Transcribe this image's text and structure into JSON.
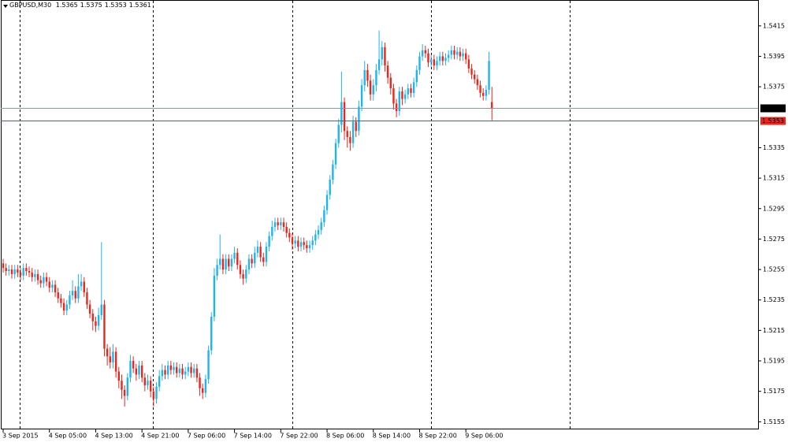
{
  "chart_data": {
    "type": "candlestick",
    "symbol": "GBPUSD,M30",
    "up_color": "#1eb4ee",
    "down_color": "#e8261c",
    "categories": [
      "3 Sep 2015",
      null,
      null,
      null,
      null,
      null,
      null,
      null,
      null,
      null,
      null,
      null,
      null,
      null,
      null,
      null,
      "4 Sep 05:00",
      null,
      null,
      null,
      null,
      null,
      null,
      null,
      null,
      null,
      null,
      null,
      null,
      null,
      null,
      null,
      "4 Sep 13:00",
      null,
      null,
      null,
      null,
      null,
      null,
      null,
      null,
      null,
      null,
      null,
      null,
      null,
      null,
      null,
      "4 Sep 21:00",
      null,
      null,
      null,
      null,
      null,
      null,
      null,
      null,
      null,
      null,
      null,
      null,
      null,
      null,
      null,
      "7 Sep 06:00",
      null,
      null,
      null,
      null,
      null,
      null,
      null,
      null,
      null,
      null,
      null,
      null,
      null,
      null,
      null,
      "7 Sep 14:00",
      null,
      null,
      null,
      null,
      null,
      null,
      null,
      null,
      null,
      null,
      null,
      null,
      null,
      null,
      null,
      "7 Sep 22:00",
      null,
      null,
      null,
      null,
      null,
      null,
      null,
      null,
      null,
      null,
      null,
      null,
      null,
      null,
      null,
      "8 Sep 06:00",
      null,
      null,
      null,
      null,
      null,
      null,
      null,
      null,
      null,
      null,
      null,
      null,
      null,
      null,
      null,
      "8 Sep 14:00",
      null,
      null,
      null,
      null,
      null,
      null,
      null,
      null,
      null,
      null,
      null,
      null,
      null,
      null,
      null,
      "8 Sep 22:00",
      null,
      null,
      null,
      null,
      null,
      null,
      null,
      null,
      null,
      null,
      null,
      null,
      null,
      null,
      null,
      "9 Sep 06:00",
      null,
      null,
      null,
      null,
      null,
      null,
      null,
      null,
      null
    ],
    "open": [
      1.5259,
      1.5256,
      1.5254,
      1.5255,
      1.5252,
      1.5255,
      1.5253,
      1.5251,
      1.5256,
      1.5254,
      1.5253,
      1.525,
      1.5252,
      1.5248,
      1.5246,
      1.525,
      1.5247,
      1.5243,
      1.5245,
      1.524,
      1.5236,
      1.5233,
      1.5228,
      1.5232,
      1.5238,
      1.5241,
      1.5236,
      1.5244,
      1.5247,
      1.524,
      1.5232,
      1.5226,
      1.5221,
      1.5218,
      1.5225,
      1.5232,
      1.5203,
      1.5198,
      1.5194,
      1.5201,
      1.5188,
      1.5182,
      1.5176,
      1.5172,
      1.5184,
      1.5195,
      1.519,
      1.5186,
      1.5192,
      1.5184,
      1.5179,
      1.5182,
      1.5175,
      1.517,
      1.5178,
      1.5185,
      1.5189,
      1.5186,
      1.5192,
      1.5189,
      1.5191,
      1.5187,
      1.519,
      1.5186,
      1.5188,
      1.5191,
      1.5187,
      1.519,
      1.5184,
      1.5177,
      1.5174,
      1.5183,
      1.5202,
      1.5224,
      1.5251,
      1.5258,
      1.5262,
      1.5255,
      1.5262,
      1.5257,
      1.5262,
      1.5266,
      1.5258,
      1.5252,
      1.5249,
      1.5255,
      1.5262,
      1.5259,
      1.5266,
      1.527,
      1.5263,
      1.526,
      1.527,
      1.5277,
      1.5283,
      1.5286,
      1.5284,
      1.5286,
      1.5283,
      1.5279,
      1.5276,
      1.5272,
      1.5274,
      1.527,
      1.5273,
      1.5271,
      1.5269,
      1.5271,
      1.5274,
      1.5278,
      1.5281,
      1.5286,
      1.5294,
      1.5304,
      1.5314,
      1.5324,
      1.5338,
      1.535,
      1.5365,
      1.5346,
      1.5342,
      1.5338,
      1.5352,
      1.5346,
      1.5362,
      1.5376,
      1.5386,
      1.5379,
      1.537,
      1.5376,
      1.5386,
      1.5393,
      1.5401,
      1.5389,
      1.5381,
      1.5374,
      1.5364,
      1.5359,
      1.5372,
      1.5367,
      1.537,
      1.5374,
      1.5371,
      1.5378,
      1.5386,
      1.5395,
      1.5399,
      1.5397,
      1.5391,
      1.5393,
      1.5389,
      1.5392,
      1.5395,
      1.5392,
      1.5394,
      1.5396,
      1.5399,
      1.5396,
      1.5398,
      1.5395,
      1.5397,
      1.5393,
      1.5387,
      1.5383,
      1.538,
      1.5376,
      1.5371,
      1.5369,
      1.5373,
      1.5365
    ],
    "high": [
      1.5262,
      1.5259,
      1.5258,
      1.5258,
      1.5258,
      1.5258,
      1.5256,
      1.5259,
      1.5259,
      1.5257,
      1.5256,
      1.5255,
      1.5255,
      1.5251,
      1.5253,
      1.5253,
      1.525,
      1.5248,
      1.5248,
      1.5243,
      1.5239,
      1.5236,
      1.5235,
      1.5241,
      1.5248,
      1.5244,
      1.5252,
      1.5252,
      1.525,
      1.5243,
      1.5235,
      1.5229,
      1.5224,
      1.523,
      1.5273,
      1.5235,
      1.5206,
      1.5204,
      1.5206,
      1.5204,
      1.5191,
      1.5186,
      1.5179,
      1.5187,
      1.5199,
      1.5198,
      1.5193,
      1.5195,
      1.5195,
      1.5187,
      1.5186,
      1.5185,
      1.5178,
      1.5181,
      1.5189,
      1.5193,
      1.5192,
      1.5195,
      1.5195,
      1.5194,
      1.5194,
      1.5193,
      1.5193,
      1.5191,
      1.5194,
      1.5194,
      1.5193,
      1.5193,
      1.5187,
      1.518,
      1.5186,
      1.5205,
      1.5227,
      1.5256,
      1.5262,
      1.5278,
      1.5265,
      1.5265,
      1.5265,
      1.5265,
      1.527,
      1.5269,
      1.5261,
      1.5255,
      1.5258,
      1.5265,
      1.5265,
      1.527,
      1.5274,
      1.5273,
      1.5266,
      1.5273,
      1.528,
      1.5287,
      1.5289,
      1.5289,
      1.5289,
      1.5289,
      1.5286,
      1.5282,
      1.5279,
      1.5277,
      1.5277,
      1.5276,
      1.5276,
      1.5274,
      1.5274,
      1.5277,
      1.5281,
      1.5284,
      1.5289,
      1.5297,
      1.5307,
      1.5317,
      1.5327,
      1.5341,
      1.5354,
      1.5385,
      1.5368,
      1.5349,
      1.5346,
      1.5356,
      1.5355,
      1.5366,
      1.538,
      1.5392,
      1.539,
      1.5383,
      1.538,
      1.539,
      1.5412,
      1.5405,
      1.5404,
      1.5392,
      1.5384,
      1.5377,
      1.5367,
      1.5375,
      1.5375,
      1.5373,
      1.5377,
      1.5377,
      1.5381,
      1.5389,
      1.5398,
      1.5403,
      1.5402,
      1.54,
      1.5396,
      1.5396,
      1.5395,
      1.5398,
      1.5398,
      1.5397,
      1.5399,
      1.5402,
      1.5402,
      1.5401,
      1.5401,
      1.54,
      1.54,
      1.5396,
      1.539,
      1.5386,
      1.5383,
      1.5379,
      1.5374,
      1.5376,
      1.5398,
      1.5375
    ],
    "low": [
      1.5253,
      1.5251,
      1.5251,
      1.5249,
      1.5249,
      1.525,
      1.5248,
      1.5248,
      1.5251,
      1.525,
      1.5247,
      1.5247,
      1.5245,
      1.5243,
      1.5243,
      1.5244,
      1.524,
      1.524,
      1.5237,
      1.5233,
      1.523,
      1.5225,
      1.5225,
      1.5229,
      1.5235,
      1.5233,
      1.5233,
      1.5241,
      1.5237,
      1.5229,
      1.5223,
      1.5215,
      1.5214,
      1.5215,
      1.5222,
      1.5198,
      1.5192,
      1.519,
      1.519,
      1.5184,
      1.5177,
      1.517,
      1.5165,
      1.5169,
      1.5181,
      1.5187,
      1.5182,
      1.5183,
      1.5181,
      1.5175,
      1.5176,
      1.5171,
      1.5165,
      1.5167,
      1.5175,
      1.5182,
      1.5183,
      1.5183,
      1.5186,
      1.5186,
      1.5184,
      1.5184,
      1.5183,
      1.5183,
      1.5185,
      1.5184,
      1.5184,
      1.5181,
      1.5172,
      1.517,
      1.5171,
      1.518,
      1.5199,
      1.5221,
      1.5248,
      1.5255,
      1.5252,
      1.5252,
      1.5254,
      1.5254,
      1.5259,
      1.5255,
      1.5249,
      1.5245,
      1.5246,
      1.5252,
      1.5256,
      1.5256,
      1.5263,
      1.526,
      1.5257,
      1.5257,
      1.5267,
      1.5274,
      1.528,
      1.5281,
      1.5281,
      1.528,
      1.5276,
      1.5273,
      1.5268,
      1.5269,
      1.5267,
      1.5267,
      1.5268,
      1.5266,
      1.5266,
      1.5268,
      1.5271,
      1.5275,
      1.5278,
      1.5283,
      1.5291,
      1.5301,
      1.5311,
      1.5321,
      1.5335,
      1.5345,
      1.534,
      1.5335,
      1.5333,
      1.5335,
      1.5342,
      1.5343,
      1.5359,
      1.5372,
      1.5375,
      1.5366,
      1.5366,
      1.5372,
      1.5383,
      1.5389,
      1.5385,
      1.5377,
      1.537,
      1.536,
      1.5355,
      1.5356,
      1.5363,
      1.5364,
      1.5367,
      1.5368,
      1.5368,
      1.5375,
      1.5383,
      1.5392,
      1.5394,
      1.5388,
      1.5388,
      1.5386,
      1.5386,
      1.5389,
      1.5389,
      1.5389,
      1.5391,
      1.5393,
      1.5393,
      1.5393,
      1.5392,
      1.5392,
      1.539,
      1.5384,
      1.538,
      1.5377,
      1.5373,
      1.5368,
      1.5366,
      1.5366,
      1.537,
      1.5353
    ],
    "close": [
      1.5256,
      1.5254,
      1.5255,
      1.5252,
      1.5255,
      1.5253,
      1.5251,
      1.5256,
      1.5254,
      1.5253,
      1.525,
      1.5252,
      1.5248,
      1.5246,
      1.525,
      1.5247,
      1.5243,
      1.5245,
      1.524,
      1.5236,
      1.5233,
      1.5228,
      1.5232,
      1.5238,
      1.5241,
      1.5236,
      1.5244,
      1.5247,
      1.524,
      1.5232,
      1.5226,
      1.5221,
      1.5218,
      1.5225,
      1.5232,
      1.5203,
      1.5198,
      1.5194,
      1.5201,
      1.5188,
      1.5182,
      1.5176,
      1.5172,
      1.5184,
      1.5195,
      1.519,
      1.5186,
      1.5192,
      1.5184,
      1.5179,
      1.5182,
      1.5175,
      1.517,
      1.5178,
      1.5185,
      1.5189,
      1.5186,
      1.5192,
      1.5189,
      1.5191,
      1.5187,
      1.519,
      1.5186,
      1.5188,
      1.5191,
      1.5187,
      1.519,
      1.5184,
      1.5177,
      1.5174,
      1.5183,
      1.5202,
      1.5224,
      1.5251,
      1.5258,
      1.5262,
      1.5255,
      1.5262,
      1.5257,
      1.5262,
      1.5266,
      1.5258,
      1.5252,
      1.5249,
      1.5255,
      1.5262,
      1.5259,
      1.5266,
      1.527,
      1.5263,
      1.526,
      1.527,
      1.5277,
      1.5283,
      1.5286,
      1.5284,
      1.5286,
      1.5283,
      1.5279,
      1.5276,
      1.5272,
      1.5274,
      1.527,
      1.5273,
      1.5271,
      1.5269,
      1.5271,
      1.5274,
      1.5278,
      1.5281,
      1.5286,
      1.5294,
      1.5304,
      1.5314,
      1.5324,
      1.5338,
      1.535,
      1.5365,
      1.5346,
      1.5342,
      1.5338,
      1.5352,
      1.5346,
      1.5362,
      1.5376,
      1.5386,
      1.5379,
      1.537,
      1.5376,
      1.5386,
      1.5393,
      1.5401,
      1.5389,
      1.5381,
      1.5374,
      1.5364,
      1.5359,
      1.5372,
      1.5367,
      1.537,
      1.5374,
      1.5371,
      1.5378,
      1.5386,
      1.5395,
      1.5399,
      1.5397,
      1.5391,
      1.5393,
      1.5389,
      1.5392,
      1.5395,
      1.5392,
      1.5394,
      1.5396,
      1.5399,
      1.5396,
      1.5398,
      1.5395,
      1.5397,
      1.5393,
      1.5387,
      1.5383,
      1.538,
      1.5376,
      1.5371,
      1.5369,
      1.5373,
      1.5392,
      1.5361
    ],
    "ylim": [
      1.515,
      1.5432
    ],
    "yticks": [
      1.5155,
      1.5175,
      1.5195,
      1.5215,
      1.5235,
      1.5255,
      1.5275,
      1.5295,
      1.5315,
      1.5335,
      1.5375,
      1.5395,
      1.5415
    ],
    "price_lines": [
      {
        "value": 1.5361,
        "color": "#7d9bb8",
        "label_bg": "#000000"
      },
      {
        "value": 1.5353,
        "color": "#e8261c",
        "label_bg": "#e8261c"
      }
    ]
  }
}
